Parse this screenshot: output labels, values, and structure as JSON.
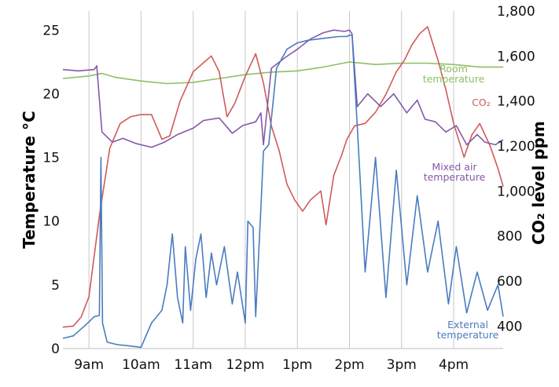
{
  "chart_data": {
    "type": "line",
    "title": "",
    "xlabel": "",
    "ylabel_left": "Temperature °C",
    "ylabel_right": "CO₂ level ppm",
    "grid": "vertical",
    "x_ticks": [
      "9am",
      "10am",
      "11am",
      "12pm",
      "1pm",
      "2pm",
      "3pm",
      "4pm"
    ],
    "x_tick_hours": [
      9,
      10,
      11,
      12,
      13,
      14,
      15,
      16
    ],
    "xlim": [
      8.5,
      16.95
    ],
    "y_left": {
      "ticks": [
        0,
        5,
        10,
        15,
        20,
        25
      ],
      "tick_labels": [
        "0",
        "5",
        "10",
        "15",
        "20",
        "25"
      ],
      "ylim": [
        0,
        26.5
      ]
    },
    "y_right": {
      "ticks": [
        400,
        600,
        800,
        1000,
        1200,
        1400,
        1600,
        1800
      ],
      "tick_labels": [
        "400",
        "600",
        "800",
        "1,000",
        "1,200",
        "1,400",
        "1,600",
        "1,800"
      ],
      "ylim": [
        300,
        1800
      ]
    },
    "series": [
      {
        "name": "Room temperature",
        "label": "Room\ntemperature",
        "axis": "left",
        "color": "#8cc063",
        "x": [
          8.5,
          9.0,
          9.25,
          9.5,
          10.0,
          10.5,
          11.0,
          11.5,
          12.0,
          12.5,
          13.0,
          13.5,
          14.0,
          14.5,
          15.0,
          15.5,
          16.0,
          16.5,
          16.95
        ],
        "values": [
          21.2,
          21.4,
          21.6,
          21.3,
          21.0,
          20.8,
          20.9,
          21.2,
          21.5,
          21.7,
          21.8,
          22.1,
          22.5,
          22.3,
          22.4,
          22.4,
          22.3,
          22.1,
          22.1
        ]
      },
      {
        "name": "CO₂",
        "label": "CO₂",
        "axis": "right",
        "color": "#d05a5a",
        "x": [
          8.5,
          8.7,
          8.85,
          9.0,
          9.2,
          9.4,
          9.6,
          9.8,
          10.0,
          10.2,
          10.4,
          10.55,
          10.75,
          11.0,
          11.2,
          11.35,
          11.5,
          11.65,
          11.8,
          12.0,
          12.12,
          12.2,
          12.35,
          12.5,
          12.65,
          12.8,
          12.95,
          13.1,
          13.25,
          13.45,
          13.55,
          13.7,
          13.85,
          13.95,
          14.1,
          14.3,
          14.5,
          14.7,
          14.9,
          15.05,
          15.2,
          15.35,
          15.5,
          15.7,
          15.85,
          16.0,
          16.2,
          16.35,
          16.5,
          16.7,
          16.85,
          16.95
        ],
        "values": [
          395,
          400,
          440,
          530,
          890,
          1190,
          1300,
          1330,
          1340,
          1340,
          1230,
          1245,
          1400,
          1530,
          1570,
          1600,
          1530,
          1330,
          1390,
          1510,
          1570,
          1610,
          1480,
          1290,
          1180,
          1030,
          960,
          910,
          960,
          1000,
          850,
          1070,
          1160,
          1230,
          1290,
          1300,
          1350,
          1430,
          1530,
          1580,
          1650,
          1700,
          1730,
          1580,
          1450,
          1300,
          1150,
          1250,
          1300,
          1200,
          1100,
          1020
        ]
      },
      {
        "name": "Mixed air temperature",
        "label": "Mixed air\ntemperature",
        "axis": "left",
        "color": "#8559a8",
        "x": [
          8.5,
          8.8,
          9.1,
          9.15,
          9.25,
          9.45,
          9.65,
          9.9,
          10.2,
          10.45,
          10.7,
          11.0,
          11.2,
          11.5,
          11.75,
          11.95,
          12.2,
          12.3,
          12.35,
          12.5,
          12.75,
          13.0,
          13.25,
          13.5,
          13.7,
          13.9,
          14.0,
          14.05,
          14.15,
          14.35,
          14.6,
          14.85,
          15.1,
          15.3,
          15.45,
          15.65,
          15.85,
          16.05,
          16.25,
          16.45,
          16.6,
          16.8,
          16.95
        ],
        "values": [
          21.9,
          21.8,
          21.9,
          22.2,
          17.0,
          16.2,
          16.5,
          16.1,
          15.8,
          16.2,
          16.8,
          17.3,
          17.9,
          18.1,
          16.9,
          17.5,
          17.8,
          18.5,
          16.0,
          22.0,
          22.8,
          23.5,
          24.3,
          24.8,
          25.0,
          24.9,
          25.0,
          24.7,
          19.0,
          20.0,
          19.0,
          20.0,
          18.5,
          19.5,
          18.0,
          17.8,
          17.0,
          17.5,
          16.0,
          16.8,
          16.2,
          16.0,
          16.4
        ]
      },
      {
        "name": "External temperature",
        "label": "External\ntemperature",
        "axis": "left",
        "color": "#4a7cbf",
        "x": [
          8.5,
          8.7,
          8.95,
          9.1,
          9.2,
          9.23,
          9.26,
          9.35,
          9.55,
          9.8,
          10.0,
          10.2,
          10.4,
          10.5,
          10.6,
          10.7,
          10.8,
          10.85,
          10.95,
          11.05,
          11.15,
          11.25,
          11.35,
          11.45,
          11.6,
          11.75,
          11.85,
          12.0,
          12.05,
          12.15,
          12.2,
          12.3,
          12.35,
          12.45,
          12.6,
          12.8,
          13.0,
          13.2,
          13.4,
          13.6,
          13.8,
          13.95,
          14.0,
          14.05,
          14.15,
          14.3,
          14.5,
          14.7,
          14.9,
          15.1,
          15.3,
          15.5,
          15.7,
          15.9,
          16.05,
          16.25,
          16.45,
          16.65,
          16.85,
          16.95
        ],
        "values": [
          0.8,
          1.0,
          1.9,
          2.5,
          2.6,
          15.0,
          2.0,
          0.5,
          0.3,
          0.2,
          0.1,
          2.0,
          3.0,
          5.0,
          9.0,
          4.0,
          2.0,
          8.0,
          3.0,
          7.0,
          9.0,
          4.0,
          7.5,
          5.0,
          8.0,
          3.5,
          6.0,
          2.0,
          10.0,
          9.5,
          2.5,
          11.0,
          15.5,
          16.0,
          22.0,
          23.5,
          24.0,
          24.2,
          24.3,
          24.4,
          24.5,
          24.5,
          24.6,
          24.6,
          17.5,
          6.0,
          15.0,
          4.0,
          14.0,
          5.0,
          12.0,
          6.0,
          10.0,
          3.5,
          8.0,
          2.8,
          6.0,
          3.0,
          5.0,
          2.5
        ]
      }
    ]
  }
}
